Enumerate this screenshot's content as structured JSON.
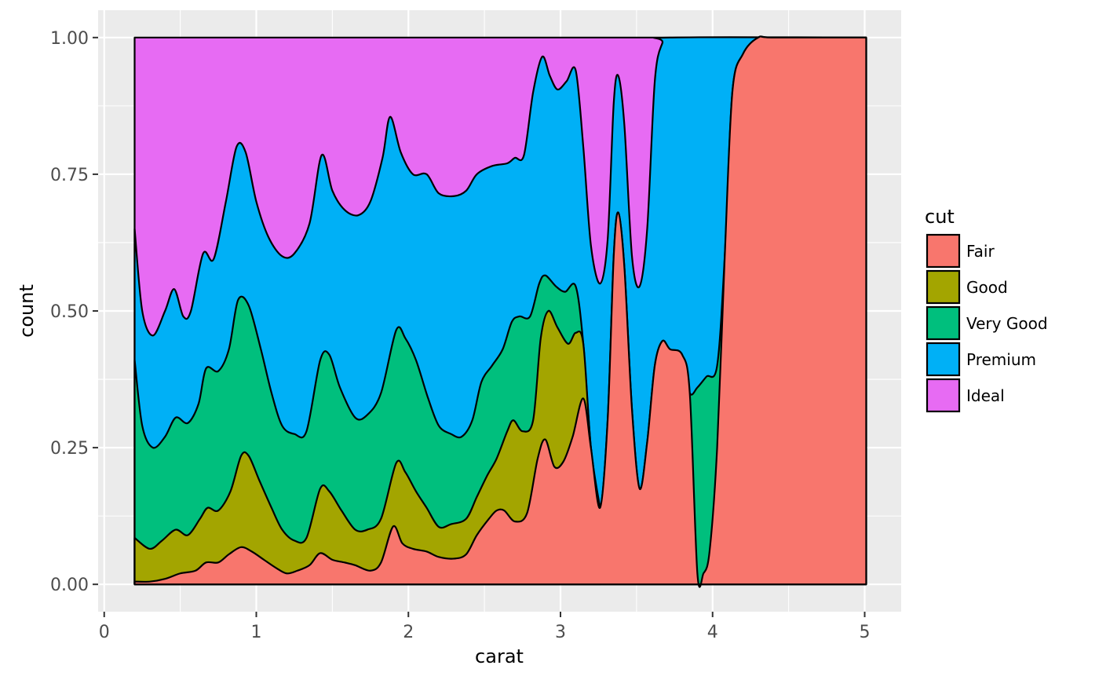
{
  "chart_data": {
    "type": "area",
    "subtype": "stacked-conditional-density",
    "title": "",
    "xlabel": "carat",
    "ylabel": "count",
    "xlim": [
      -0.04,
      5.24
    ],
    "ylim": [
      -0.05,
      1.05
    ],
    "x_ticks": [
      0,
      1,
      2,
      3,
      4,
      5
    ],
    "x_tick_labels": [
      "0",
      "1",
      "2",
      "3",
      "4",
      "5"
    ],
    "y_ticks": [
      0,
      0.25,
      0.5,
      0.75,
      1
    ],
    "y_tick_labels": [
      "0.00",
      "0.25",
      "0.50",
      "0.75",
      "1.00"
    ],
    "grid": true,
    "panel_background": "#EBEBEB",
    "grid_color": "#FFFFFF",
    "outline_color": "#000000",
    "legend": {
      "title": "cut",
      "placement": "right",
      "entries": [
        "Fair",
        "Good",
        "Very Good",
        "Premium",
        "Ideal"
      ]
    },
    "series": [
      {
        "name": "Fair",
        "color": "#F8766D",
        "points": [
          [
            0.2,
            0.005
          ],
          [
            0.3,
            0.005
          ],
          [
            0.4,
            0.01
          ],
          [
            0.5,
            0.02
          ],
          [
            0.6,
            0.025
          ],
          [
            0.67,
            0.04
          ],
          [
            0.75,
            0.04
          ],
          [
            0.82,
            0.055
          ],
          [
            0.9,
            0.068
          ],
          [
            0.97,
            0.06
          ],
          [
            1.05,
            0.045
          ],
          [
            1.13,
            0.03
          ],
          [
            1.2,
            0.02
          ],
          [
            1.27,
            0.025
          ],
          [
            1.35,
            0.035
          ],
          [
            1.42,
            0.057
          ],
          [
            1.5,
            0.045
          ],
          [
            1.58,
            0.04
          ],
          [
            1.65,
            0.035
          ],
          [
            1.75,
            0.025
          ],
          [
            1.82,
            0.04
          ],
          [
            1.9,
            0.106
          ],
          [
            1.96,
            0.075
          ],
          [
            2.03,
            0.065
          ],
          [
            2.12,
            0.06
          ],
          [
            2.2,
            0.05
          ],
          [
            2.3,
            0.047
          ],
          [
            2.38,
            0.055
          ],
          [
            2.45,
            0.09
          ],
          [
            2.53,
            0.12
          ],
          [
            2.58,
            0.135
          ],
          [
            2.63,
            0.135
          ],
          [
            2.7,
            0.115
          ],
          [
            2.78,
            0.13
          ],
          [
            2.85,
            0.23
          ],
          [
            2.9,
            0.265
          ],
          [
            2.96,
            0.215
          ],
          [
            3.02,
            0.225
          ],
          [
            3.08,
            0.27
          ],
          [
            3.15,
            0.34
          ],
          [
            3.2,
            0.25
          ],
          [
            3.26,
            0.14
          ],
          [
            3.31,
            0.3
          ],
          [
            3.35,
            0.6
          ],
          [
            3.38,
            0.68
          ],
          [
            3.42,
            0.58
          ],
          [
            3.47,
            0.32
          ],
          [
            3.52,
            0.175
          ],
          [
            3.57,
            0.26
          ],
          [
            3.62,
            0.4
          ],
          [
            3.67,
            0.445
          ],
          [
            3.72,
            0.43
          ],
          [
            3.8,
            0.42
          ],
          [
            3.85,
            0.35
          ],
          [
            3.9,
            0.02
          ],
          [
            3.94,
            0.02
          ],
          [
            3.98,
            0.06
          ],
          [
            4.03,
            0.25
          ],
          [
            4.08,
            0.6
          ],
          [
            4.13,
            0.9
          ],
          [
            4.2,
            0.97
          ],
          [
            4.3,
            1
          ],
          [
            4.4,
            1
          ],
          [
            5.01,
            1
          ]
        ]
      },
      {
        "name": "Good",
        "color": "#A3A500",
        "points": [
          [
            0.2,
            0.085
          ],
          [
            0.3,
            0.065
          ],
          [
            0.38,
            0.08
          ],
          [
            0.47,
            0.1
          ],
          [
            0.55,
            0.09
          ],
          [
            0.63,
            0.12
          ],
          [
            0.68,
            0.14
          ],
          [
            0.75,
            0.135
          ],
          [
            0.83,
            0.17
          ],
          [
            0.9,
            0.235
          ],
          [
            0.95,
            0.235
          ],
          [
            1.02,
            0.19
          ],
          [
            1.1,
            0.14
          ],
          [
            1.17,
            0.1
          ],
          [
            1.25,
            0.08
          ],
          [
            1.33,
            0.085
          ],
          [
            1.42,
            0.175
          ],
          [
            1.48,
            0.17
          ],
          [
            1.56,
            0.135
          ],
          [
            1.65,
            0.1
          ],
          [
            1.73,
            0.1
          ],
          [
            1.82,
            0.12
          ],
          [
            1.92,
            0.222
          ],
          [
            1.98,
            0.205
          ],
          [
            2.05,
            0.17
          ],
          [
            2.12,
            0.14
          ],
          [
            2.2,
            0.105
          ],
          [
            2.28,
            0.11
          ],
          [
            2.38,
            0.12
          ],
          [
            2.45,
            0.16
          ],
          [
            2.52,
            0.2
          ],
          [
            2.58,
            0.23
          ],
          [
            2.65,
            0.28
          ],
          [
            2.69,
            0.3
          ],
          [
            2.75,
            0.28
          ],
          [
            2.82,
            0.3
          ],
          [
            2.87,
            0.45
          ],
          [
            2.92,
            0.5
          ],
          [
            2.98,
            0.47
          ],
          [
            3.05,
            0.44
          ],
          [
            3.1,
            0.46
          ],
          [
            3.15,
            0.44
          ],
          [
            3.2,
            0.25
          ],
          [
            3.26,
            0.14
          ]
        ]
      },
      {
        "name": "Very Good",
        "color": "#00BF7D",
        "points": [
          [
            0.2,
            0.41
          ],
          [
            0.25,
            0.29
          ],
          [
            0.32,
            0.25
          ],
          [
            0.4,
            0.27
          ],
          [
            0.47,
            0.305
          ],
          [
            0.55,
            0.295
          ],
          [
            0.62,
            0.33
          ],
          [
            0.67,
            0.395
          ],
          [
            0.75,
            0.39
          ],
          [
            0.82,
            0.43
          ],
          [
            0.88,
            0.52
          ],
          [
            0.95,
            0.51
          ],
          [
            1.03,
            0.43
          ],
          [
            1.1,
            0.35
          ],
          [
            1.17,
            0.29
          ],
          [
            1.25,
            0.275
          ],
          [
            1.33,
            0.28
          ],
          [
            1.42,
            0.41
          ],
          [
            1.48,
            0.42
          ],
          [
            1.55,
            0.36
          ],
          [
            1.65,
            0.305
          ],
          [
            1.73,
            0.31
          ],
          [
            1.82,
            0.35
          ],
          [
            1.92,
            0.465
          ],
          [
            1.98,
            0.45
          ],
          [
            2.05,
            0.41
          ],
          [
            2.13,
            0.34
          ],
          [
            2.2,
            0.29
          ],
          [
            2.28,
            0.275
          ],
          [
            2.35,
            0.27
          ],
          [
            2.42,
            0.3
          ],
          [
            2.48,
            0.37
          ],
          [
            2.55,
            0.4
          ],
          [
            2.62,
            0.43
          ],
          [
            2.68,
            0.48
          ],
          [
            2.73,
            0.49
          ],
          [
            2.8,
            0.49
          ],
          [
            2.86,
            0.55
          ],
          [
            2.9,
            0.565
          ],
          [
            2.97,
            0.545
          ],
          [
            3.03,
            0.535
          ],
          [
            3.1,
            0.545
          ],
          [
            3.15,
            0.44
          ],
          [
            3.2,
            0.25
          ],
          [
            3.26,
            0.14
          ],
          [
            3.31,
            0.3
          ],
          [
            3.35,
            0.6
          ],
          [
            3.38,
            0.68
          ],
          [
            3.42,
            0.58
          ],
          [
            3.47,
            0.32
          ],
          [
            3.52,
            0.175
          ],
          [
            3.57,
            0.26
          ],
          [
            3.62,
            0.4
          ],
          [
            3.67,
            0.445
          ],
          [
            3.72,
            0.43
          ],
          [
            3.8,
            0.42
          ],
          [
            3.85,
            0.35
          ],
          [
            3.9,
            0.36
          ],
          [
            3.96,
            0.38
          ],
          [
            4.03,
            0.4
          ],
          [
            4.08,
            0.6
          ],
          [
            4.13,
            0.9
          ],
          [
            4.2,
            0.97
          ],
          [
            4.3,
            1
          ],
          [
            4.4,
            1
          ],
          [
            5.01,
            1
          ]
        ]
      },
      {
        "name": "Premium",
        "color": "#00B0F6",
        "points": [
          [
            0.2,
            0.65
          ],
          [
            0.25,
            0.5
          ],
          [
            0.32,
            0.455
          ],
          [
            0.4,
            0.5
          ],
          [
            0.46,
            0.54
          ],
          [
            0.52,
            0.49
          ],
          [
            0.57,
            0.5
          ],
          [
            0.65,
            0.605
          ],
          [
            0.72,
            0.595
          ],
          [
            0.8,
            0.7
          ],
          [
            0.87,
            0.8
          ],
          [
            0.93,
            0.79
          ],
          [
            1,
            0.7
          ],
          [
            1.08,
            0.635
          ],
          [
            1.17,
            0.6
          ],
          [
            1.25,
            0.605
          ],
          [
            1.35,
            0.66
          ],
          [
            1.43,
            0.785
          ],
          [
            1.5,
            0.72
          ],
          [
            1.58,
            0.685
          ],
          [
            1.67,
            0.675
          ],
          [
            1.75,
            0.7
          ],
          [
            1.83,
            0.78
          ],
          [
            1.88,
            0.855
          ],
          [
            1.95,
            0.79
          ],
          [
            2.03,
            0.75
          ],
          [
            2.12,
            0.75
          ],
          [
            2.2,
            0.715
          ],
          [
            2.3,
            0.71
          ],
          [
            2.38,
            0.72
          ],
          [
            2.45,
            0.75
          ],
          [
            2.55,
            0.765
          ],
          [
            2.65,
            0.77
          ],
          [
            2.7,
            0.78
          ],
          [
            2.76,
            0.785
          ],
          [
            2.82,
            0.9
          ],
          [
            2.88,
            0.965
          ],
          [
            2.93,
            0.93
          ],
          [
            2.98,
            0.905
          ],
          [
            3.04,
            0.92
          ],
          [
            3.1,
            0.94
          ],
          [
            3.15,
            0.8
          ],
          [
            3.2,
            0.62
          ],
          [
            3.26,
            0.55
          ],
          [
            3.31,
            0.63
          ],
          [
            3.35,
            0.88
          ],
          [
            3.38,
            0.93
          ],
          [
            3.42,
            0.84
          ],
          [
            3.47,
            0.6
          ],
          [
            3.52,
            0.545
          ],
          [
            3.57,
            0.65
          ],
          [
            3.62,
            0.92
          ],
          [
            3.67,
            0.99
          ],
          [
            3.72,
            1
          ],
          [
            5.01,
            1
          ]
        ]
      },
      {
        "name": "Ideal",
        "color": "#E76BF3",
        "points": [
          [
            0.2,
            1
          ],
          [
            5.01,
            1
          ]
        ]
      }
    ]
  }
}
